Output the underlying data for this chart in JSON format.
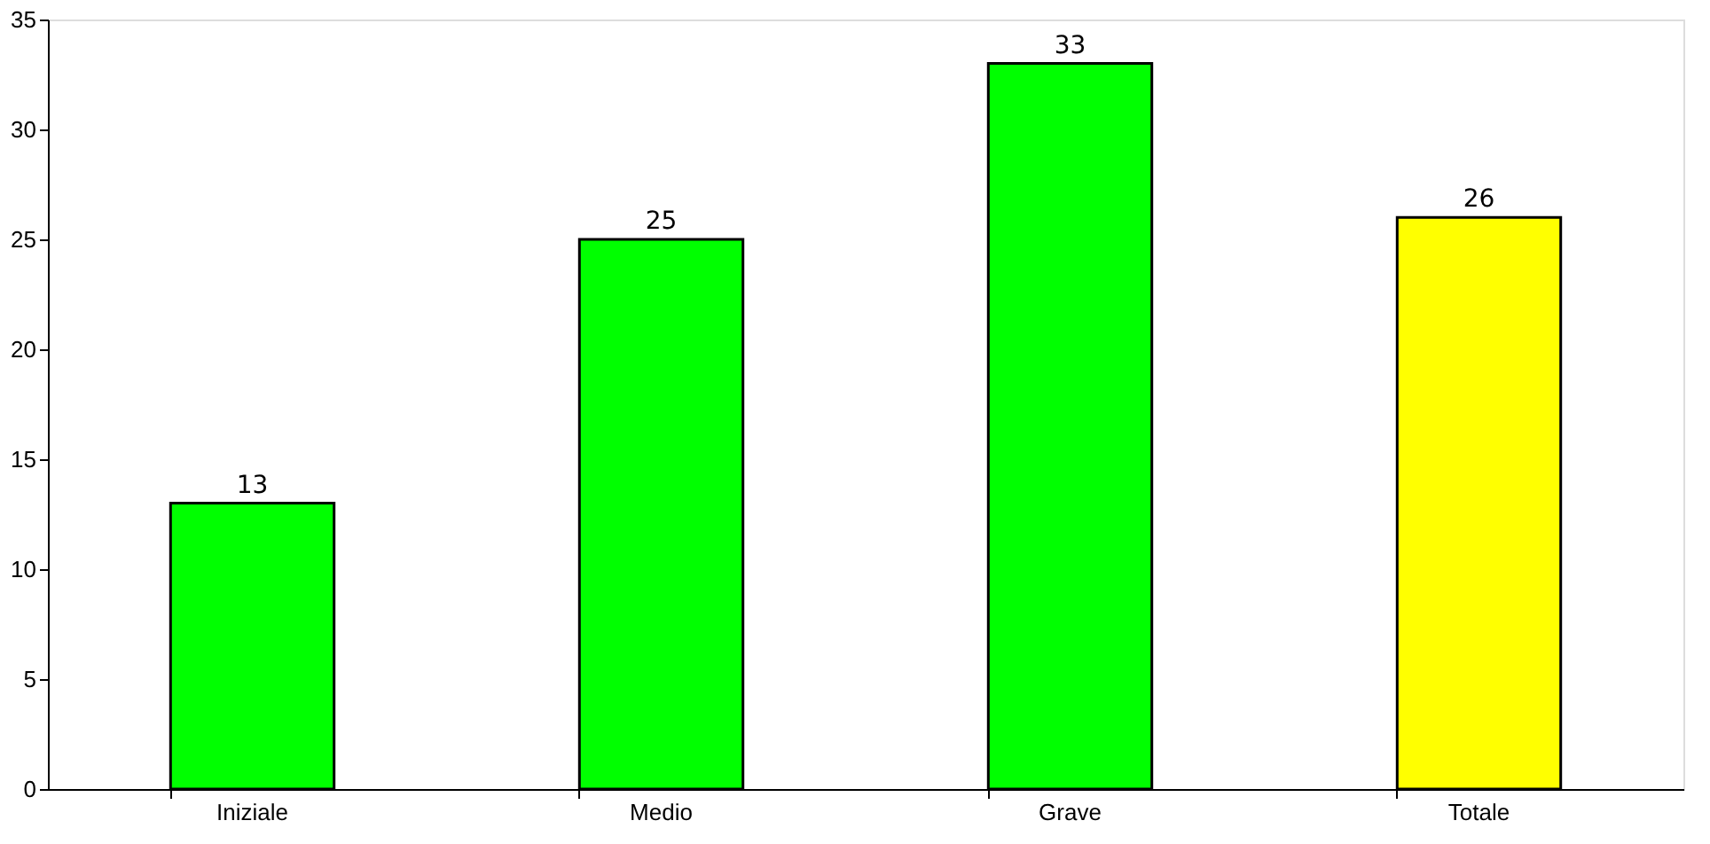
{
  "chart_data": {
    "type": "bar",
    "categories": [
      "Iniziale",
      "Medio",
      "Grave",
      "Totale"
    ],
    "values": [
      13,
      25,
      33,
      26
    ],
    "colors": [
      "#00ff00",
      "#00ff00",
      "#00ff00",
      "#ffff00"
    ],
    "ylim": [
      0,
      35
    ],
    "yticks": [
      0,
      5,
      10,
      15,
      20,
      25,
      30,
      35
    ],
    "grid": false,
    "data_labels": true
  }
}
